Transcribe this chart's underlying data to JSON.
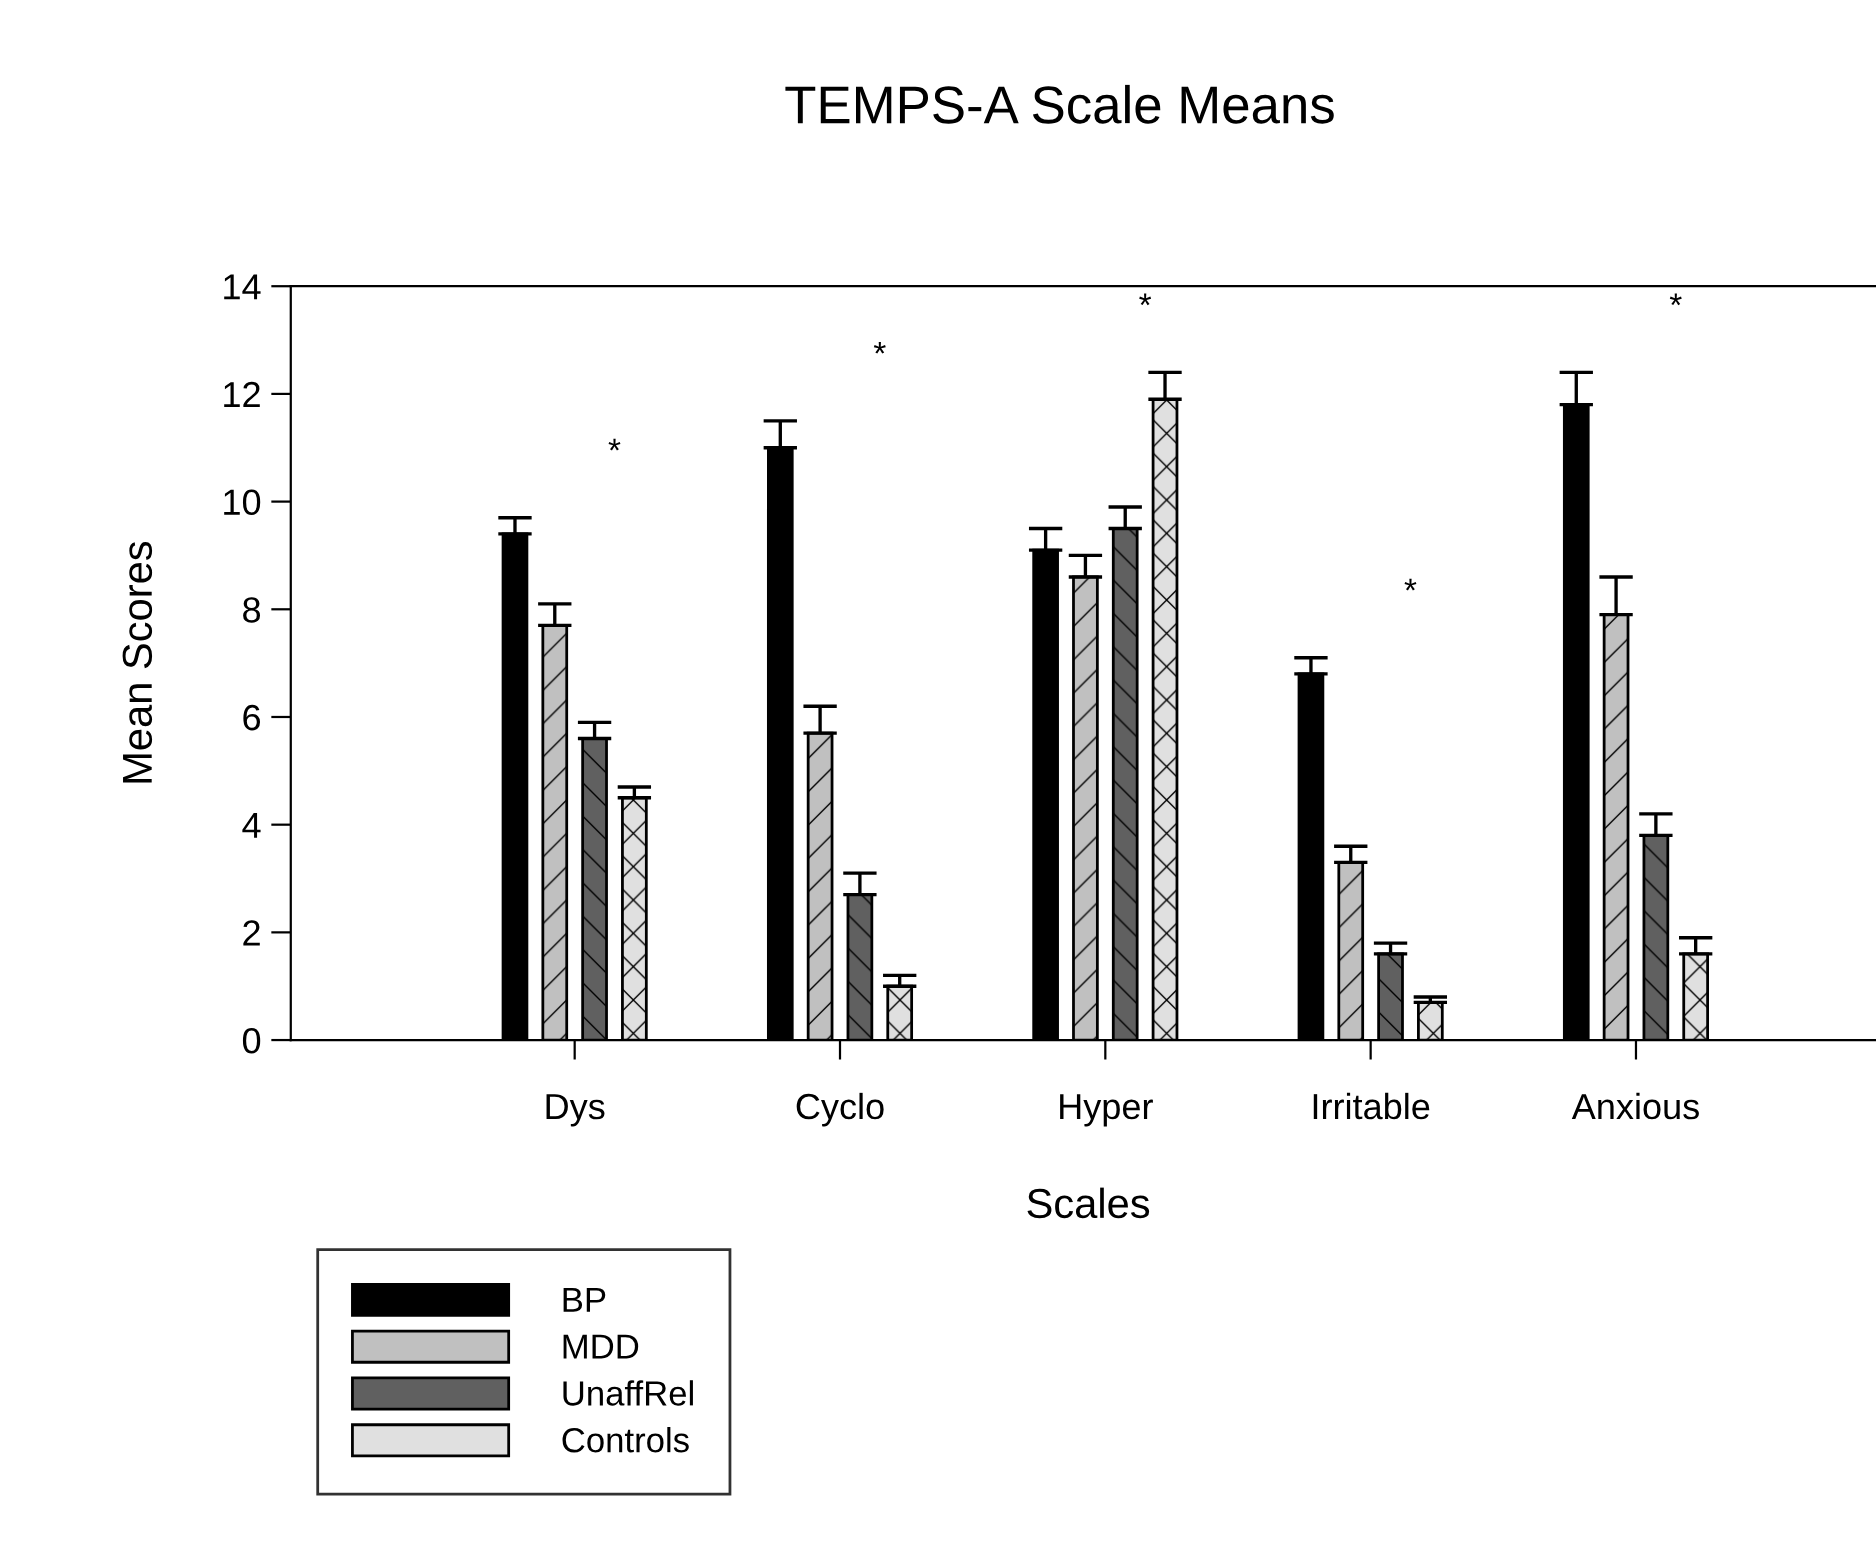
{
  "chart_data": {
    "type": "bar",
    "title": "TEMPS-A Scale Means",
    "xlabel": "Scales",
    "ylabel": "Mean Scores",
    "categories": [
      "Dys",
      "Cyclo",
      "Hyper",
      "Irritable",
      "Anxious"
    ],
    "series": [
      {
        "name": "BP",
        "color": "#000000",
        "values": [
          9.4,
          11.0,
          9.1,
          6.8,
          11.8
        ],
        "errors": [
          [
            9.4,
            9.7
          ],
          [
            11.0,
            11.5
          ],
          [
            9.1,
            9.5
          ],
          [
            6.8,
            7.1
          ],
          [
            11.8,
            12.4
          ]
        ]
      },
      {
        "name": "MDD",
        "color": "#c0c0c0",
        "values": [
          7.7,
          5.7,
          8.6,
          3.3,
          7.9
        ],
        "errors": [
          [
            7.7,
            8.1
          ],
          [
            5.7,
            6.2
          ],
          [
            8.6,
            9.0
          ],
          [
            3.3,
            3.6
          ],
          [
            7.9,
            8.6
          ]
        ]
      },
      {
        "name": "UnaffRel",
        "color": "#606060",
        "values": [
          5.6,
          2.7,
          9.5,
          1.6,
          3.8
        ],
        "errors": [
          [
            5.6,
            5.9
          ],
          [
            2.7,
            3.1
          ],
          [
            9.5,
            9.9
          ],
          [
            1.6,
            1.8
          ],
          [
            3.8,
            4.2
          ]
        ]
      },
      {
        "name": "Controls",
        "color": "#e0e0e0",
        "values": [
          4.5,
          1.0,
          11.9,
          0.7,
          1.6
        ],
        "errors": [
          [
            4.5,
            4.7
          ],
          [
            1.0,
            1.2
          ],
          [
            11.9,
            12.4
          ],
          [
            0.7,
            0.8
          ],
          [
            1.6,
            1.9
          ]
        ]
      }
    ],
    "ylim": [
      0,
      14
    ],
    "yticks": [
      0,
      2,
      4,
      6,
      8,
      10,
      12,
      14
    ],
    "grid": false,
    "legend": "bottom left",
    "annotations": [
      "*",
      "*",
      "*",
      "*",
      "*"
    ]
  }
}
